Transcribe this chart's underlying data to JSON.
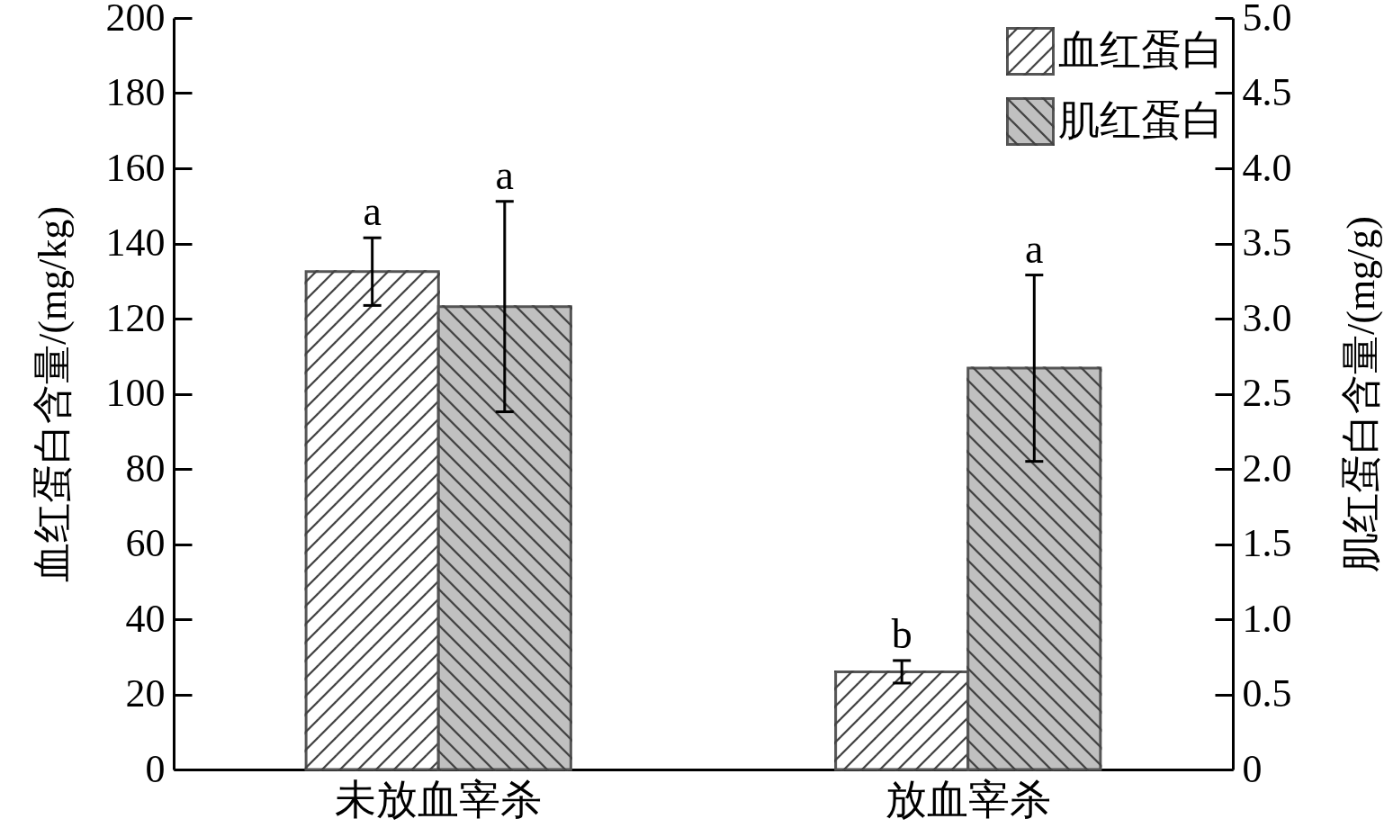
{
  "chart_data": {
    "type": "bar",
    "categories": [
      "未放血宰杀",
      "放血宰杀"
    ],
    "ylabel": "血红蛋白含量/(mg/kg)",
    "y2label": "肌红蛋白含量/(mg/g)",
    "ylim": [
      0,
      200
    ],
    "yticks": [
      0,
      20,
      40,
      60,
      80,
      100,
      120,
      140,
      160,
      180,
      200
    ],
    "y2lim": [
      0,
      5
    ],
    "y2ticks": [
      0,
      {
        "value": 0.5,
        "label": "0.5"
      },
      {
        "value": 1,
        "label": "1.0"
      },
      {
        "value": 1.5,
        "label": "1.5"
      },
      {
        "value": 2,
        "label": "2.0"
      },
      {
        "value": 2.5,
        "label": "2.5"
      },
      {
        "value": 3,
        "label": "3.0"
      },
      {
        "value": 3.5,
        "label": "3.5"
      },
      {
        "value": 4,
        "label": "4.0"
      },
      {
        "value": 4.5,
        "label": "4.5"
      },
      {
        "value": 5,
        "label": "5.0"
      }
    ],
    "legend": "top right",
    "series": [
      {
        "name": "血红蛋白",
        "color": "#ffffff",
        "values": [
          132.5,
          26
        ],
        "errors": [
          9,
          3
        ],
        "value_labels": [
          "a",
          "b"
        ]
      },
      {
        "name": "肌红蛋白",
        "color": "#c0c0c0",
        "axis": "y2",
        "values": [
          3.08,
          2.67
        ],
        "errors": [
          0.7,
          0.62
        ],
        "value_labels": [
          "a",
          "a"
        ]
      }
    ]
  }
}
